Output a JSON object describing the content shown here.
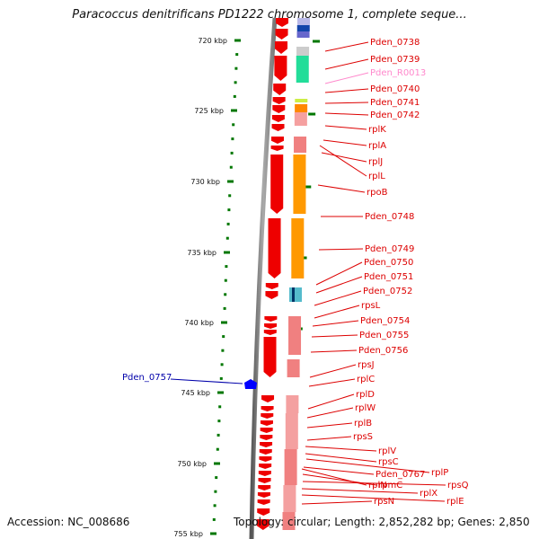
{
  "title": "Paracoccus denitrificans PD1222 chromosome 1, complete seque...",
  "footer": {
    "accession": "Accession: NC_008686",
    "topology": "Topology: circular; Length: 2,852,282 bp; Genes: 2,850"
  },
  "colors": {
    "gene_label": "#dd0000",
    "rna_label": "#ff88cc",
    "highlight_label": "#0000aa",
    "forward_gene": "#ee0000",
    "reverse_gene": "#f08080",
    "tick": "#007700",
    "backbone": "#888888"
  },
  "ticks": [
    "720 kbp",
    "725 kbp",
    "730 kbp",
    "735 kbp",
    "740 kbp",
    "745 kbp",
    "750 kbp",
    "755 kbp"
  ],
  "gene_labels": [
    {
      "name": "Pden_0738"
    },
    {
      "name": "Pden_0739"
    },
    {
      "name": "Pden_R0013",
      "kind": "rna"
    },
    {
      "name": "Pden_0740"
    },
    {
      "name": "Pden_0741"
    },
    {
      "name": "Pden_0742"
    },
    {
      "name": "rplK"
    },
    {
      "name": "rplA"
    },
    {
      "name": "rplJ"
    },
    {
      "name": "rplL"
    },
    {
      "name": "rpoB"
    },
    {
      "name": "Pden_0748"
    },
    {
      "name": "Pden_0749"
    },
    {
      "name": "Pden_0750"
    },
    {
      "name": "Pden_0751"
    },
    {
      "name": "Pden_0752"
    },
    {
      "name": "rpsL"
    },
    {
      "name": "Pden_0754"
    },
    {
      "name": "Pden_0755"
    },
    {
      "name": "Pden_0756"
    },
    {
      "name": "rpsJ"
    },
    {
      "name": "rplC"
    },
    {
      "name": "rplD"
    },
    {
      "name": "rplW"
    },
    {
      "name": "rplB"
    },
    {
      "name": "rpsS"
    },
    {
      "name": "rplV"
    },
    {
      "name": "rpsC"
    },
    {
      "name": "rplP"
    },
    {
      "name": "Pden_0767"
    },
    {
      "name": "rpmC"
    },
    {
      "name": "rpsQ"
    },
    {
      "name": "rplN"
    },
    {
      "name": "rplX"
    },
    {
      "name": "rplE"
    },
    {
      "name": "rpsN"
    }
  ],
  "highlight": {
    "name": "Pden_0757"
  }
}
